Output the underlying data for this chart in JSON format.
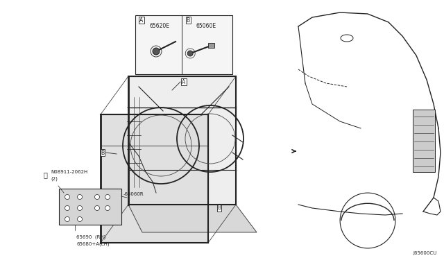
{
  "bg_color": "#ffffff",
  "fig_width": 6.4,
  "fig_height": 3.72,
  "dpi": 100,
  "diagram_code": "J65600CU",
  "labels": {
    "part_A_code": "65620E",
    "part_B_code": "65060E",
    "part_B2_code": "65060R",
    "part_bottom1": "65690  (RH)",
    "part_bottom2": "65680+A(LH)",
    "bolt_code": "N08911-2062H",
    "bolt_qty": "(2)"
  },
  "text_color": "#1a1a1a",
  "line_color": "#444444",
  "dark_color": "#222222",
  "gray_color": "#888888",
  "fs_small": 5.5,
  "fs_tiny": 5.0,
  "fs_label": 5.8
}
